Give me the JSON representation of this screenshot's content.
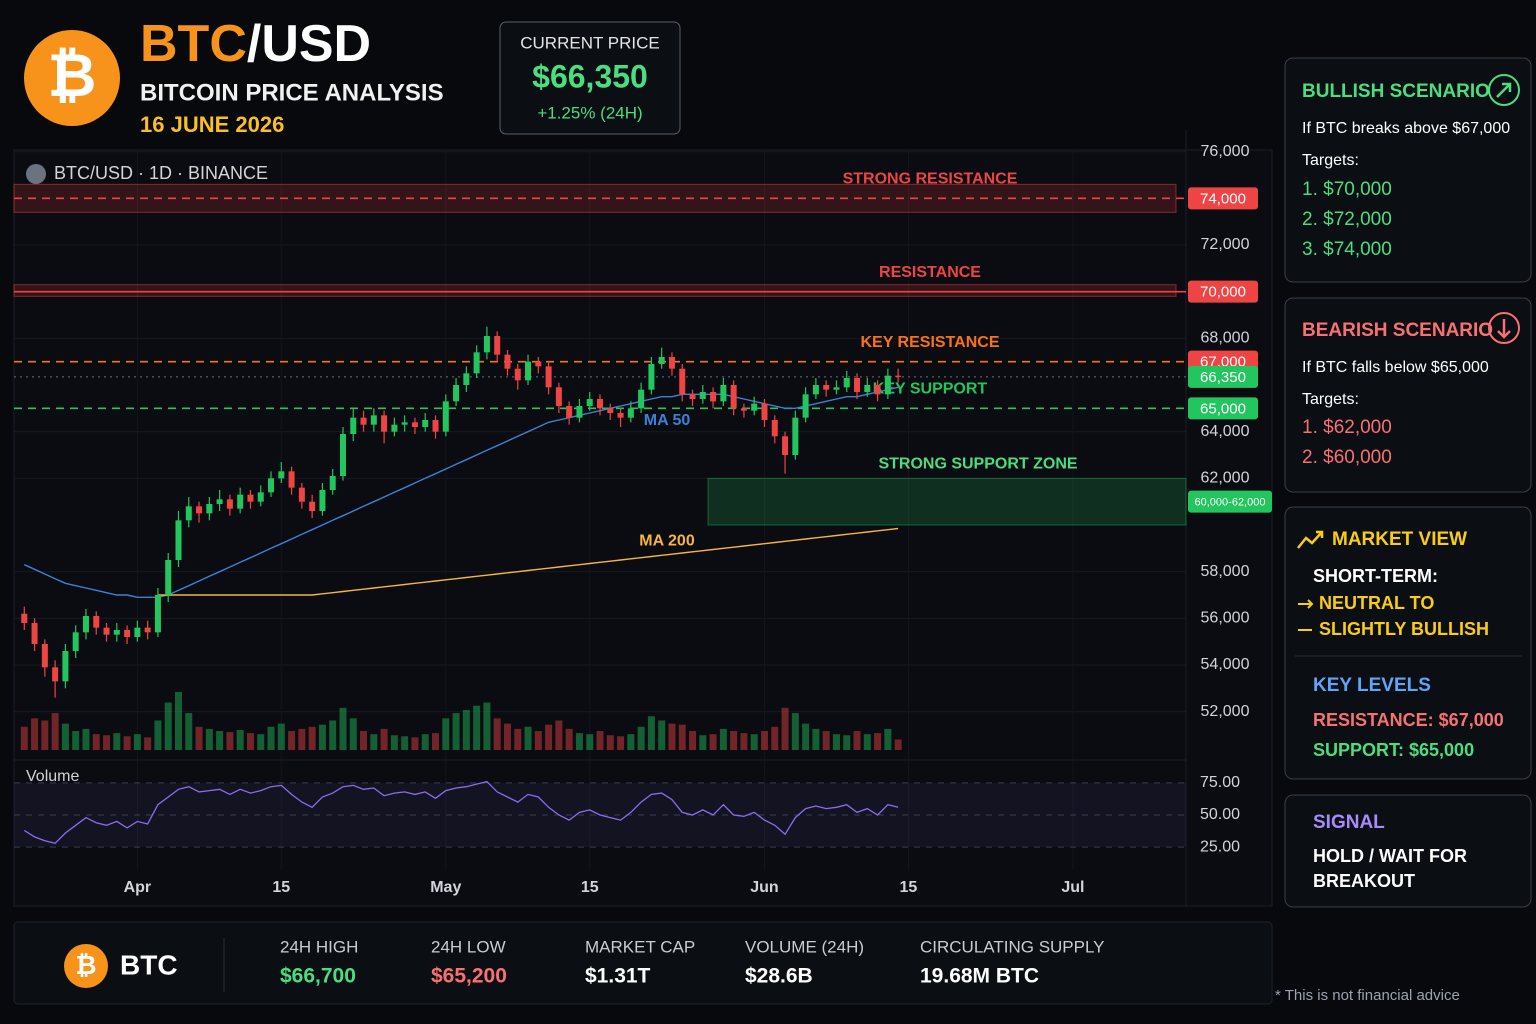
{
  "header": {
    "logo": "₿",
    "title_base": "BTC",
    "title_quote": "/USD",
    "subtitle": "BITCOIN PRICE ANALYSIS",
    "date": "16 JUNE 2026"
  },
  "price_box": {
    "label": "CURRENT PRICE",
    "price": "$66,350",
    "change": "+1.25% (24H)"
  },
  "chart_data": {
    "type": "candlestick",
    "label": "BTC/USD · 1D · BINANCE",
    "x": [
      "03-21",
      "03-22",
      "03-23",
      "03-24",
      "03-25",
      "03-26",
      "03-27",
      "03-28",
      "03-29",
      "03-30",
      "03-31",
      "04-01",
      "04-02",
      "04-03",
      "04-04",
      "04-05",
      "04-06",
      "04-07",
      "04-08",
      "04-09",
      "04-10",
      "04-11",
      "04-12",
      "04-13",
      "04-14",
      "04-15",
      "04-16",
      "04-17",
      "04-18",
      "04-19",
      "04-20",
      "04-21",
      "04-22",
      "04-23",
      "04-24",
      "04-25",
      "04-26",
      "04-27",
      "04-28",
      "04-29",
      "04-30",
      "05-01",
      "05-02",
      "05-03",
      "05-04",
      "05-05",
      "05-06",
      "05-07",
      "05-08",
      "05-09",
      "05-10",
      "05-11",
      "05-12",
      "05-13",
      "05-14",
      "05-15",
      "05-16",
      "05-17",
      "05-18",
      "05-19",
      "05-20",
      "05-21",
      "05-22",
      "05-23",
      "05-24",
      "05-25",
      "05-26",
      "05-27",
      "05-28",
      "05-29",
      "05-30",
      "05-31",
      "06-01",
      "06-02",
      "06-03",
      "06-04",
      "06-05",
      "06-06",
      "06-07",
      "06-08",
      "06-09",
      "06-10",
      "06-11",
      "06-12",
      "06-13",
      "06-14"
    ],
    "open": [
      56200,
      55800,
      54900,
      53900,
      53300,
      54600,
      55400,
      56100,
      55600,
      55300,
      55500,
      55200,
      55600,
      55400,
      57000,
      58500,
      60200,
      60800,
      60500,
      60900,
      61100,
      60700,
      61300,
      61000,
      61400,
      62000,
      62300,
      61600,
      61000,
      60600,
      61500,
      62100,
      63900,
      64600,
      64300,
      64700,
      64000,
      64300,
      64400,
      64200,
      64500,
      64000,
      65300,
      66000,
      66500,
      67400,
      68100,
      67300,
      66700,
      66200,
      67000,
      66800,
      65900,
      65100,
      64600,
      65100,
      65400,
      65000,
      64800,
      64600,
      65000,
      65800,
      66900,
      67200,
      66700,
      65600,
      65400,
      65700,
      65300,
      66000,
      65000,
      64900,
      65200,
      64500,
      63800,
      63000,
      64600,
      65600,
      66000,
      65800,
      65900,
      66300,
      65700,
      66000,
      65600,
      66400
    ],
    "high": [
      56500,
      56000,
      55100,
      54200,
      54900,
      55700,
      56400,
      56300,
      55800,
      55800,
      55700,
      55900,
      55900,
      57300,
      58800,
      60600,
      61200,
      61000,
      61200,
      61500,
      61300,
      61600,
      61500,
      61700,
      62300,
      62700,
      62500,
      61800,
      61300,
      61800,
      62400,
      64200,
      65000,
      64900,
      65000,
      64900,
      64600,
      64700,
      64600,
      64800,
      64700,
      65600,
      66300,
      66800,
      67700,
      68500,
      68300,
      67500,
      66900,
      67300,
      67200,
      67000,
      66100,
      65300,
      65400,
      65700,
      65600,
      65200,
      65000,
      65300,
      66100,
      67200,
      67600,
      67400,
      66900,
      65800,
      66000,
      65900,
      66300,
      66200,
      65200,
      65500,
      65400,
      64700,
      64000,
      64900,
      65900,
      66300,
      66200,
      66200,
      66600,
      66500,
      66300,
      66200,
      66700,
      66700
    ],
    "low": [
      55500,
      54600,
      53500,
      52600,
      53000,
      54300,
      55100,
      55300,
      55000,
      55000,
      54900,
      55000,
      55100,
      55200,
      56700,
      58200,
      59900,
      60100,
      60200,
      60600,
      60400,
      60500,
      60700,
      60800,
      61200,
      61800,
      61300,
      60700,
      60300,
      60400,
      61300,
      61900,
      63600,
      64000,
      64000,
      63500,
      63800,
      64000,
      63900,
      64000,
      63700,
      63800,
      65100,
      65700,
      66300,
      67100,
      67000,
      66400,
      65800,
      66000,
      66500,
      65600,
      64800,
      64300,
      64400,
      64900,
      64700,
      64500,
      64200,
      64400,
      64800,
      65600,
      66700,
      66400,
      65300,
      65100,
      65200,
      65000,
      65100,
      64700,
      64600,
      64700,
      64200,
      63500,
      62200,
      62800,
      64400,
      65400,
      65500,
      65600,
      65700,
      65400,
      65500,
      65300,
      65400,
      66100
    ],
    "close": [
      55800,
      54900,
      53900,
      53300,
      54600,
      55400,
      56100,
      55600,
      55300,
      55500,
      55200,
      55600,
      55400,
      57000,
      58500,
      60200,
      60800,
      60500,
      60900,
      61100,
      60700,
      61300,
      61000,
      61400,
      62000,
      62300,
      61600,
      61000,
      60600,
      61500,
      62100,
      63900,
      64600,
      64300,
      64700,
      64000,
      64300,
      64400,
      64200,
      64500,
      64000,
      65300,
      66000,
      66500,
      67400,
      68100,
      67300,
      66700,
      66200,
      67000,
      66800,
      65900,
      65100,
      64600,
      65100,
      65400,
      65000,
      64800,
      64600,
      65000,
      65800,
      66900,
      67200,
      66700,
      65600,
      65400,
      65700,
      65300,
      66000,
      65000,
      64900,
      65200,
      64500,
      63800,
      63000,
      64600,
      65600,
      66000,
      65800,
      65900,
      66300,
      65700,
      66000,
      65600,
      66400,
      66350
    ],
    "up_color": "#22c55e",
    "down_color": "#ef4444",
    "series": [
      {
        "name": "MA 50",
        "color": "#3b82d6",
        "values": [
          58300,
          58100,
          57900,
          57700,
          57500,
          57400,
          57300,
          57200,
          57100,
          57000,
          57000,
          56900,
          56900,
          56900,
          57000,
          57200,
          57400,
          57600,
          57800,
          58000,
          58200,
          58400,
          58600,
          58800,
          59000,
          59200,
          59400,
          59600,
          59800,
          60000,
          60200,
          60400,
          60600,
          60800,
          61000,
          61200,
          61400,
          61600,
          61800,
          62000,
          62200,
          62400,
          62600,
          62800,
          63000,
          63200,
          63400,
          63600,
          63800,
          64000,
          64200,
          64400,
          64500,
          64600,
          64700,
          64800,
          64900,
          65000,
          65100,
          65200,
          65300,
          65400,
          65500,
          65500,
          65600,
          65600,
          65600,
          65600,
          65600,
          65500,
          65400,
          65300,
          65200,
          65100,
          65000,
          65000,
          65100,
          65200,
          65300,
          65400,
          65500,
          65500,
          65600,
          65700,
          65800,
          65900
        ]
      },
      {
        "name": "MA 200",
        "color": "#f5b53f",
        "values": [
          null,
          null,
          null,
          null,
          null,
          null,
          null,
          null,
          null,
          null,
          null,
          null,
          null,
          57000,
          57000,
          57000,
          57000,
          57000,
          57000,
          57000,
          57000,
          57000,
          57000,
          57000,
          57000,
          57000,
          57000,
          57000,
          57000,
          57050,
          57100,
          57150,
          57200,
          57250,
          57300,
          57350,
          57400,
          57450,
          57500,
          57550,
          57600,
          57650,
          57700,
          57750,
          57800,
          57850,
          57900,
          57950,
          58000,
          58050,
          58100,
          58150,
          58200,
          58250,
          58300,
          58350,
          58400,
          58450,
          58500,
          58550,
          58600,
          58650,
          58700,
          58750,
          58800,
          58850,
          58900,
          58950,
          59000,
          59050,
          59100,
          59150,
          59200,
          59250,
          59300,
          59350,
          59400,
          59450,
          59500,
          59550,
          59600,
          59650,
          59700,
          59750,
          59800,
          59850
        ]
      }
    ],
    "xlim": [
      "03-20",
      "07-12"
    ],
    "xticks": [
      {
        "value": "04-01",
        "label": "Apr"
      },
      {
        "value": "04-15",
        "label": "15"
      },
      {
        "value": "05-01",
        "label": "May"
      },
      {
        "value": "05-15",
        "label": "15"
      },
      {
        "value": "06-01",
        "label": "Jun"
      },
      {
        "value": "06-15",
        "label": "15"
      },
      {
        "value": "07-01",
        "label": "Jul"
      }
    ],
    "ylim": [
      51000,
      76500
    ],
    "yticks": [
      {
        "value": 52000,
        "label": "52,000"
      },
      {
        "value": 54000,
        "label": "54,000"
      },
      {
        "value": 56000,
        "label": "56,000"
      },
      {
        "value": 58000,
        "label": "58,000"
      },
      {
        "value": 62000,
        "label": "62,000"
      },
      {
        "value": 64000,
        "label": "64,000"
      },
      {
        "value": 68000,
        "label": "68,000"
      },
      {
        "value": 72000,
        "label": "72,000"
      },
      {
        "value": 76000,
        "label": "76,000"
      }
    ],
    "grid": true,
    "levels": [
      {
        "label": "STRONG RESISTANCE",
        "price": {
          "value": 74000,
          "label": "74,000"
        },
        "zone": [
          73400,
          74600
        ],
        "color": "#ef4444",
        "style": "dashed"
      },
      {
        "label": "RESISTANCE",
        "price": {
          "value": 70000,
          "label": "70,000"
        },
        "zone": [
          69800,
          70300
        ],
        "color": "#ef4444",
        "style": "solid"
      },
      {
        "label": "KEY RESISTANCE",
        "price": {
          "value": 67000,
          "label": "67,000"
        },
        "color": "#f97316",
        "tag_color": "#ef4444",
        "style": "dashed"
      },
      {
        "label": "KEY SUPPORT",
        "price": {
          "value": 65000,
          "label": "65,000"
        },
        "color": "#22c55e",
        "style": "dashed"
      }
    ],
    "current": {
      "price": {
        "value": 66350,
        "label": "66,350"
      },
      "color": "#22c55e"
    },
    "support_zone": {
      "label": "STRONG SUPPORT ZONE",
      "zone": [
        60000,
        62000
      ],
      "tag": "60,000-62,000",
      "color": "#22c55e"
    },
    "volume": {
      "label": "Volume",
      "values": [
        22,
        30,
        28,
        35,
        25,
        18,
        20,
        15,
        14,
        16,
        13,
        15,
        12,
        28,
        45,
        55,
        35,
        22,
        20,
        18,
        17,
        19,
        16,
        15,
        22,
        25,
        18,
        20,
        22,
        24,
        28,
        40,
        30,
        18,
        15,
        20,
        14,
        13,
        12,
        15,
        16,
        30,
        35,
        38,
        42,
        45,
        30,
        25,
        20,
        22,
        18,
        24,
        28,
        20,
        16,
        15,
        18,
        14,
        13,
        15,
        22,
        32,
        28,
        25,
        24,
        18,
        14,
        15,
        20,
        18,
        16,
        15,
        18,
        22,
        40,
        35,
        25,
        20,
        18,
        15,
        14,
        18,
        15,
        16,
        20,
        10
      ]
    },
    "rsi": {
      "color": "#8b6cf0",
      "ylim": [
        15,
        85
      ],
      "yticks": [
        {
          "value": 25,
          "label": "25.00"
        },
        {
          "value": 50,
          "label": "50.00"
        },
        {
          "value": 75,
          "label": "75.00"
        }
      ],
      "values": [
        38,
        33,
        30,
        28,
        36,
        42,
        48,
        44,
        42,
        45,
        40,
        45,
        43,
        58,
        64,
        70,
        72,
        68,
        69,
        70,
        66,
        70,
        67,
        69,
        72,
        73,
        66,
        60,
        56,
        64,
        67,
        72,
        73,
        70,
        71,
        65,
        67,
        68,
        66,
        68,
        63,
        69,
        71,
        72,
        74,
        76,
        68,
        64,
        60,
        66,
        64,
        56,
        50,
        46,
        52,
        54,
        50,
        48,
        46,
        52,
        60,
        66,
        67,
        62,
        52,
        50,
        54,
        50,
        58,
        50,
        49,
        52,
        46,
        42,
        35,
        48,
        55,
        57,
        55,
        56,
        58,
        52,
        55,
        50,
        58,
        56
      ]
    }
  },
  "bullish": {
    "title": "BULLISH SCENARIO",
    "condition": "If BTC breaks above $67,000",
    "targets_label": "Targets:",
    "targets": [
      "1. $70,000",
      "2. $72,000",
      "3. $74,000"
    ]
  },
  "bearish": {
    "title": "BEARISH SCENARIO",
    "condition": "If BTC falls below $65,000",
    "targets_label": "Targets:",
    "targets": [
      "1. $62,000",
      "2. $60,000"
    ]
  },
  "market_view": {
    "title": "MARKET VIEW",
    "term": "SHORT-TERM:",
    "outlook": [
      "NEUTRAL TO",
      "SLIGHTLY BULLISH"
    ],
    "key_levels": {
      "title": "KEY LEVELS",
      "resistance": "RESISTANCE: $67,000",
      "support": "SUPPORT: $65,000"
    }
  },
  "signal": {
    "title": "SIGNAL",
    "text": [
      "HOLD / WAIT FOR",
      "BREAKOUT"
    ]
  },
  "footer": {
    "logo": "₿",
    "symbol": "BTC",
    "stats": [
      {
        "label": "24H HIGH",
        "value": "$66,700",
        "color": "#4ade80"
      },
      {
        "label": "24H LOW",
        "value": "$65,200",
        "color": "#f87171"
      },
      {
        "label": "MARKET CAP",
        "value": "$1.31T",
        "color": "#ffffff"
      },
      {
        "label": "VOLUME (24H)",
        "value": "$28.6B",
        "color": "#ffffff"
      },
      {
        "label": "CIRCULATING SUPPLY",
        "value": "19.68M BTC",
        "color": "#ffffff"
      }
    ],
    "disclaimer": "* This is not financial advice"
  }
}
